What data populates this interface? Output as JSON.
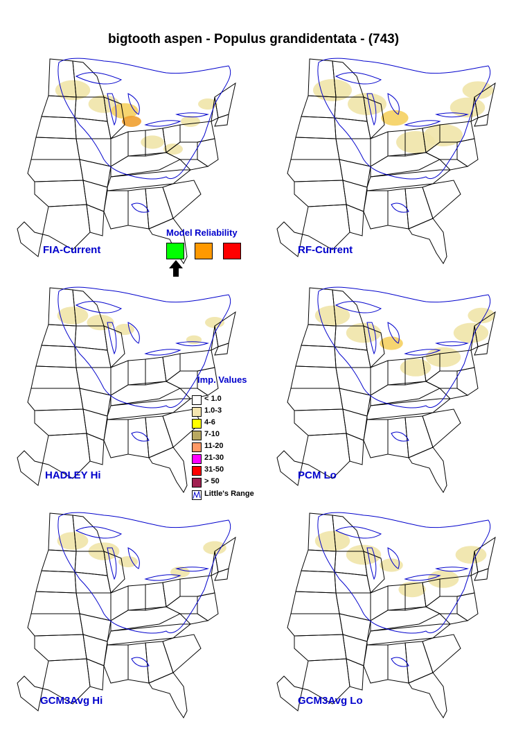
{
  "title": "bigtooth aspen - Populus grandidentata - (743)",
  "maps": [
    {
      "label": "FIA-Current"
    },
    {
      "label": "RF-Current"
    },
    {
      "label": "HADLEY Hi"
    },
    {
      "label": "PCM Lo"
    },
    {
      "label": "GCM3Avg Hi"
    },
    {
      "label": "GCM3Avg Lo"
    }
  ],
  "model_reliability": {
    "title": "Model Reliability",
    "levels": [
      {
        "color": "#00ff00",
        "selected": true
      },
      {
        "color": "#ff9900",
        "selected": false
      },
      {
        "color": "#ff0000",
        "selected": false
      }
    ]
  },
  "legend": {
    "title": "Imp. Values",
    "items": [
      {
        "label": "< 1.0",
        "color": "#ffffff"
      },
      {
        "label": "1.0-3",
        "color": "#f5e6b0"
      },
      {
        "label": "4-6",
        "color": "#ffff00"
      },
      {
        "label": "7-10",
        "color": "#b8a860"
      },
      {
        "label": "11-20",
        "color": "#ff9966"
      },
      {
        "label": "21-30",
        "color": "#ff00ff"
      },
      {
        "label": "31-50",
        "color": "#ff0000"
      },
      {
        "label": "> 50",
        "color": "#a02050"
      },
      {
        "label": "Little's Range",
        "color": "#ffffff"
      }
    ]
  },
  "colors": {
    "range_line": "#0000cc",
    "low_value": "#f0e4a8",
    "mid_value": "#f5d060",
    "high_value": "#f0a030"
  }
}
